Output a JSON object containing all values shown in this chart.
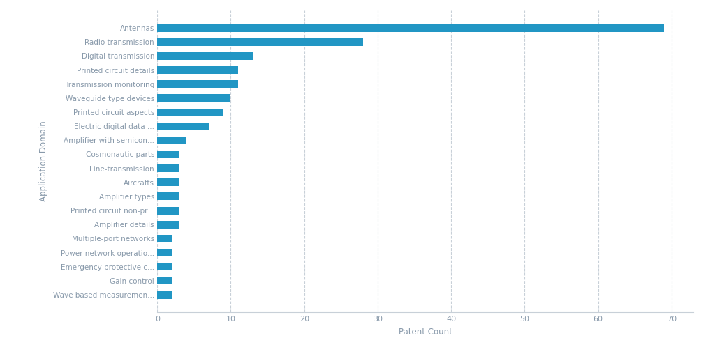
{
  "categories": [
    "Wave based measuremen...",
    "Gain control",
    "Emergency protective c...",
    "Power network operatio...",
    "Multiple-port networks",
    "Amplifier details",
    "Printed circuit non-pr...",
    "Amplifier types",
    "Aircrafts",
    "Line-transmission",
    "Cosmonautic parts",
    "Amplifier with semicon...",
    "Electric digital data ...",
    "Printed circuit aspects",
    "Waveguide type devices",
    "Transmission monitoring",
    "Printed circuit details",
    "Digital transmission",
    "Radio transmission",
    "Antennas"
  ],
  "values": [
    2,
    2,
    2,
    2,
    2,
    3,
    3,
    3,
    3,
    3,
    3,
    4,
    7,
    9,
    10,
    11,
    11,
    13,
    28,
    69
  ],
  "bar_color": "#2196c4",
  "xlabel": "Patent Count",
  "ylabel": "Application Domain",
  "xlim": [
    0,
    73
  ],
  "xticks": [
    0,
    10,
    20,
    30,
    40,
    50,
    60,
    70
  ],
  "background_color": "#ffffff",
  "grid_color": "#c8d0d8",
  "tick_color": "#8899aa",
  "bar_height": 0.55,
  "figsize": [
    10.24,
    4.98
  ],
  "dpi": 100
}
